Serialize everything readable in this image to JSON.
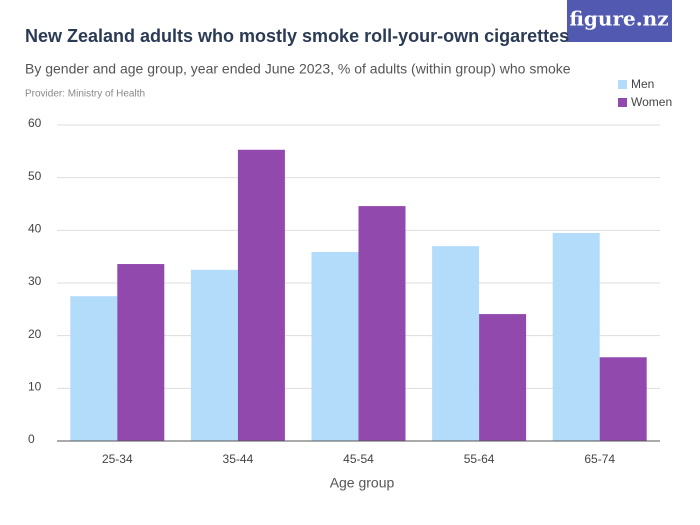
{
  "chart_data": {
    "type": "bar",
    "title": "New Zealand adults who mostly smoke roll-your-own cigarettes",
    "subtitle": "By gender and age group, year ended June 2023, % of adults (within group) who smoke",
    "provider": "Provider: Ministry of Health",
    "logo": "figure.nz",
    "x_label": "Age group",
    "categories": [
      "25-34",
      "35-44",
      "45-54",
      "55-64",
      "65-74"
    ],
    "series": [
      {
        "name": "Men",
        "color": "#b3dcfb",
        "values": [
          27.5,
          32.5,
          35.9,
          37.0,
          39.5
        ]
      },
      {
        "name": "Women",
        "color": "#9249ad",
        "values": [
          33.6,
          55.3,
          44.6,
          24.1,
          15.9
        ]
      }
    ],
    "ylim": [
      0,
      60
    ],
    "yticks": [
      0,
      10,
      20,
      30,
      40,
      50,
      60
    ],
    "grid": true,
    "legend": "top-right"
  }
}
